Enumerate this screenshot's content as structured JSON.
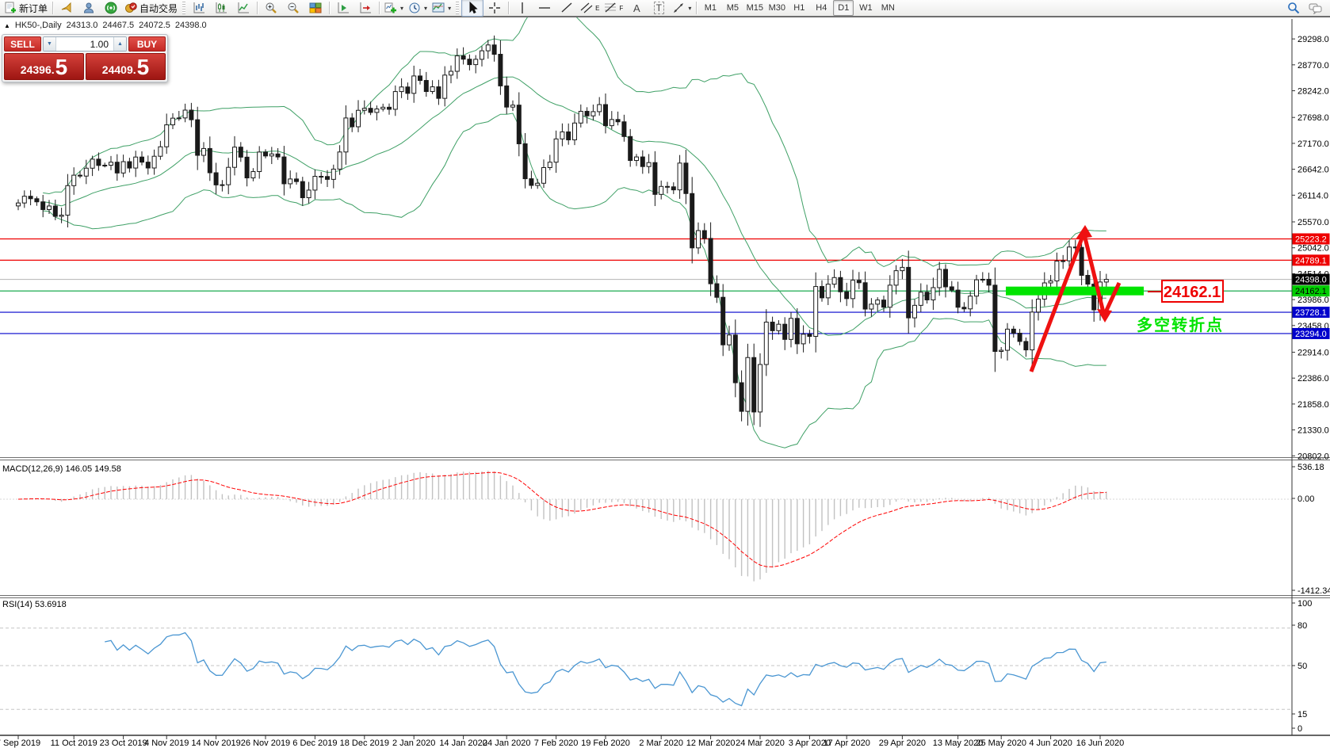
{
  "toolbar": {
    "new_order_label": "新订单",
    "auto_trading_label": "自动交易",
    "timeframes": [
      "M1",
      "M5",
      "M15",
      "M30",
      "H1",
      "H4",
      "D1",
      "W1",
      "MN"
    ],
    "active_timeframe": "D1",
    "tool_letters": {
      "channel": "E",
      "fibonacci": "F",
      "text": "A",
      "label": "T"
    }
  },
  "symbol_header": {
    "marker": "▲",
    "title": "HK50-,Daily",
    "open": "24313.0",
    "high": "24467.5",
    "low": "24072.5",
    "close": "24398.0"
  },
  "trade_panel": {
    "sell_label": "SELL",
    "buy_label": "BUY",
    "volume": "1.00",
    "sell_price_main": "24396",
    "sell_price_dot": ".",
    "sell_price_big": "5",
    "buy_price_main": "24409",
    "buy_price_dot": ".",
    "buy_price_big": "5",
    "spin_down": "▼",
    "spin_up": "▲"
  },
  "chart_data": {
    "type": "candlestick",
    "symbol": "HK50",
    "timeframe": "Daily",
    "ohlc_display": {
      "open": 24313.0,
      "high": 24467.5,
      "low": 24072.5,
      "close": 24398.0
    },
    "ylim": [
      20400,
      29700
    ],
    "y_axis_ticks": [
      29298.0,
      28770.0,
      28242.0,
      27698.0,
      27170.0,
      26642.0,
      26114.0,
      25570.0,
      25042.0,
      24514.0,
      23986.0,
      23458.0,
      22914.0,
      22386.0,
      21858.0,
      21330.0,
      20802.0
    ],
    "x_ticks": [
      {
        "label": "7 Sep 2019",
        "index": 0
      },
      {
        "label": "11 Oct 2019",
        "index": 9
      },
      {
        "label": "23 Oct 2019",
        "index": 17
      },
      {
        "label": "4 Nov 2019",
        "index": 24
      },
      {
        "label": "14 Nov 2019",
        "index": 32
      },
      {
        "label": "26 Nov 2019",
        "index": 40
      },
      {
        "label": "6 Dec 2019",
        "index": 48
      },
      {
        "label": "18 Dec 2019",
        "index": 56
      },
      {
        "label": "2 Jan 2020",
        "index": 64
      },
      {
        "label": "14 Jan 2020",
        "index": 72
      },
      {
        "label": "24 Jan 2020",
        "index": 79
      },
      {
        "label": "7 Feb 2020",
        "index": 87
      },
      {
        "label": "19 Feb 2020",
        "index": 95
      },
      {
        "label": "2 Mar 2020",
        "index": 104
      },
      {
        "label": "12 Mar 2020",
        "index": 112
      },
      {
        "label": "24 Mar 2020",
        "index": 120
      },
      {
        "label": "3 Apr 2020",
        "index": 128
      },
      {
        "label": "17 Apr 2020",
        "index": 134
      },
      {
        "label": "29 Apr 2020",
        "index": 143
      },
      {
        "label": "13 May 2020",
        "index": 152
      },
      {
        "label": "25 May 2020",
        "index": 159
      },
      {
        "label": "4 Jun 2020",
        "index": 167
      },
      {
        "label": "16 Jun 2020",
        "index": 175
      }
    ],
    "closes": [
      25955,
      26092,
      26042,
      25978,
      25821,
      25893,
      25682,
      25707,
      26308,
      26521,
      26503,
      26664,
      26848,
      26720,
      26725,
      26786,
      26566,
      26797,
      26667,
      26891,
      26787,
      26668,
      26907,
      27100,
      27547,
      27683,
      27688,
      27847,
      27651,
      26926,
      27065,
      26571,
      26323,
      26327,
      26681,
      27093,
      26889,
      26466,
      26595,
      26993,
      26913,
      26954,
      26893,
      26346,
      26444,
      26391,
      26062,
      26217,
      26498,
      26494,
      26436,
      26645,
      26994,
      27687,
      27508,
      27843,
      27884,
      27800,
      27871,
      27906,
      27864,
      28225,
      28319,
      28189,
      28543,
      28452,
      28226,
      28322,
      28087,
      28561,
      28638,
      28954,
      28885,
      28774,
      28883,
      29056,
      29175,
      28985,
      28341,
      27909,
      27949,
      27161,
      26449,
      26313,
      26357,
      26676,
      26786,
      27260,
      27404,
      27241,
      27584,
      27823,
      27730,
      27816,
      27960,
      27530,
      27656,
      27609,
      27309,
      26821,
      26893,
      26697,
      26778,
      26130,
      26292,
      26284,
      26222,
      26768,
      26147,
      25040,
      25392,
      25232,
      24309,
      24033,
      23064,
      23264,
      22292,
      21709,
      22805,
      21696,
      22663,
      23527,
      23352,
      23484,
      23175,
      23603,
      23085,
      23280,
      23236,
      24253,
      24022,
      24300,
      24435,
      24145,
      24006,
      24380,
      24330,
      23793,
      23893,
      23977,
      23831,
      24280,
      24575,
      24643,
      23614,
      23869,
      24137,
      23980,
      24230,
      24602,
      24246,
      24180,
      23830,
      23797,
      24057,
      24389,
      24400,
      24280,
      22930,
      22953,
      23384,
      23301,
      23133,
      22961,
      23732,
      23996,
      24326,
      24366,
      24770,
      24777,
      25057,
      25050,
      24480,
      24301,
      23777,
      24344,
      24398
    ],
    "levels": [
      {
        "price": 25223.2,
        "color": "#ee0000",
        "tag_bg": "#ee0000",
        "tag_fg": "#ffffff"
      },
      {
        "price": 24789.1,
        "color": "#ee0000",
        "tag_bg": "#ee0000",
        "tag_fg": "#ffffff"
      },
      {
        "price": 24398.0,
        "color": "#b4b4b4",
        "tag_bg": "#000000",
        "tag_fg": "#ffffff"
      },
      {
        "price": 24162.1,
        "color": "#00a23c",
        "tag_bg": "#00cc00",
        "tag_fg": "#000000"
      },
      {
        "price": 23728.1,
        "color": "#0000cc",
        "tag_bg": "#0000cc",
        "tag_fg": "#ffffff"
      },
      {
        "price": 23294.0,
        "color": "#0000cc",
        "tag_bg": "#0000cc",
        "tag_fg": "#ffffff"
      }
    ],
    "indicators": {
      "bollinger": {
        "period": 20,
        "deviation": 2,
        "color": "#3fa066"
      },
      "macd": {
        "label": "MACD(12,26,9) 146.05 149.58",
        "fast": 12,
        "slow": 26,
        "signal": 9,
        "current_macd": 146.05,
        "current_signal": 149.58,
        "axis_labels": [
          "536.18",
          "0.00",
          "-1412.34"
        ],
        "hist_color": "#c2c2c2",
        "signal_color": "#ff0000"
      },
      "rsi": {
        "label": "RSI(14) 53.6918",
        "period": 14,
        "current": 53.6918,
        "axis_labels": [
          "100",
          "80",
          "50",
          "15",
          "0"
        ],
        "level_lines": [
          80,
          50,
          15
        ],
        "color": "#4a96d2"
      }
    },
    "annotations": {
      "support_bar": {
        "price": 24162.1,
        "color": "#00e400"
      },
      "price_callout": {
        "text": "24162.1",
        "color": "#ee0000"
      },
      "turning_point_text": {
        "text": "多空转折点",
        "color": "#00e400"
      },
      "arrow_color": "#ee1111"
    }
  }
}
